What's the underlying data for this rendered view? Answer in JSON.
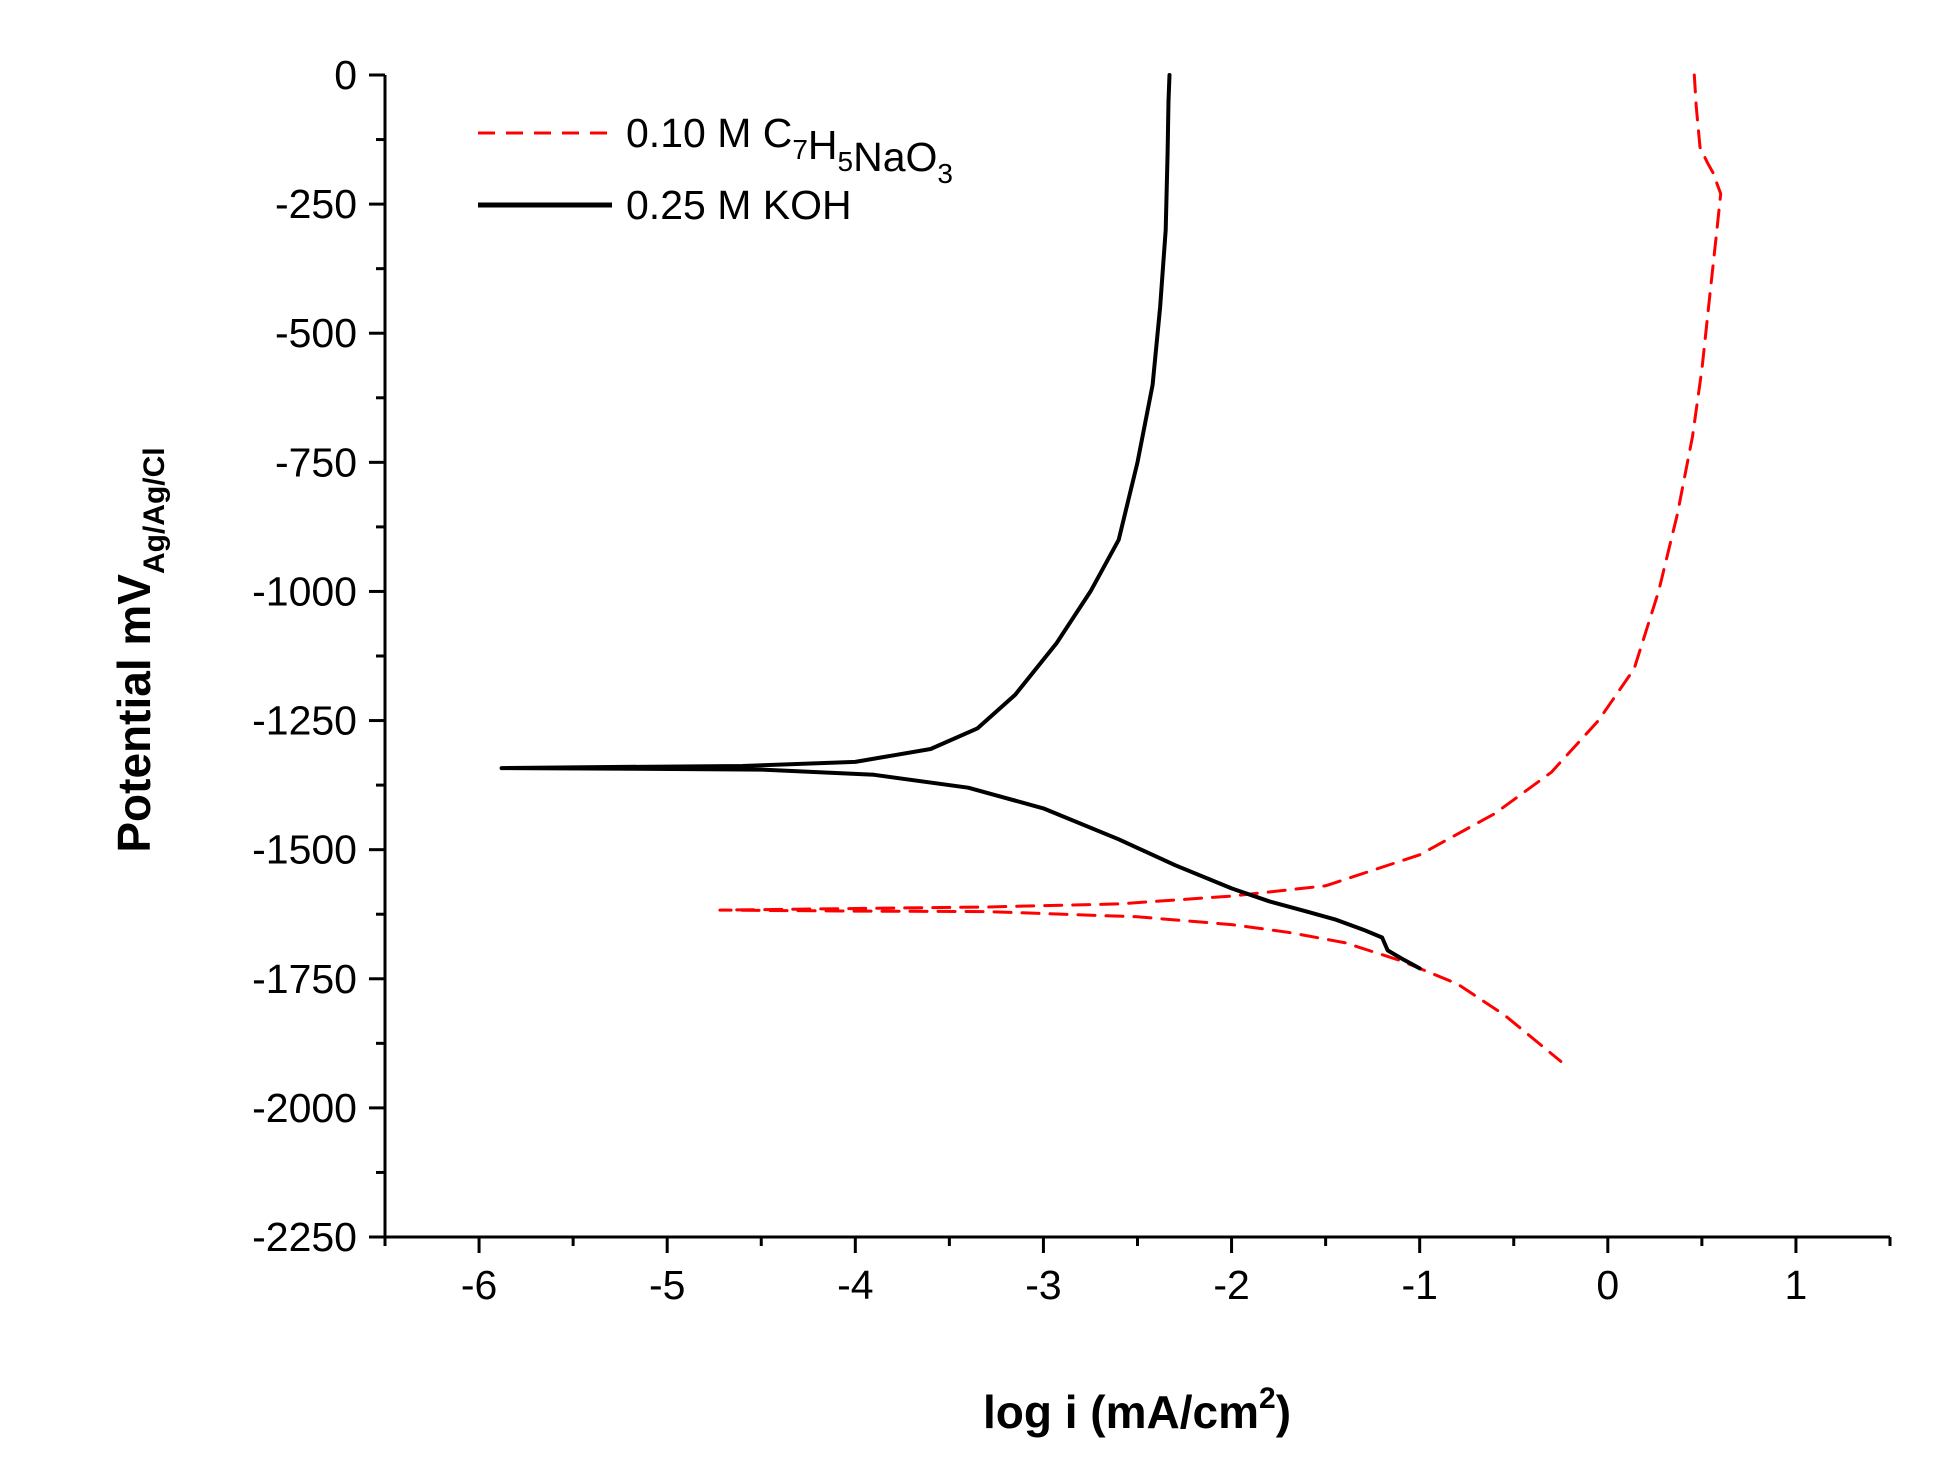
{
  "chart_data": {
    "type": "line",
    "title": "",
    "xlabel": "log i (mA/cm",
    "xlabel_sup": "2",
    "xlabel_close": ")",
    "ylabel": "Potential mV",
    "ylabel_sub": "Ag/Ag/Cl",
    "xlim": [
      -6.5,
      1.5
    ],
    "ylim": [
      -2250,
      0
    ],
    "x_ticks": [
      -6,
      -5,
      -4,
      -3,
      -2,
      -1,
      0,
      1
    ],
    "x_tick_labels": [
      "-6",
      "-5",
      "-4",
      "-3",
      "-2",
      "-1",
      "0",
      "1"
    ],
    "y_ticks": [
      0,
      -250,
      -500,
      -750,
      -1000,
      -1250,
      -1500,
      -1750,
      -2000,
      -2250
    ],
    "y_tick_labels": [
      "0",
      "-250",
      "-500",
      "-750",
      "-1000",
      "-1250",
      "-1500",
      "-1750",
      "-2000",
      "-2250"
    ],
    "grid": false,
    "legend_position": "top-left",
    "series": [
      {
        "name": "0.10 M C7H5NaO3",
        "label_parts": [
          {
            "t": "0.10 M C",
            "sub": false
          },
          {
            "t": "7",
            "sub": true
          },
          {
            "t": "H",
            "sub": false
          },
          {
            "t": "5",
            "sub": true
          },
          {
            "t": "NaO",
            "sub": false
          },
          {
            "t": "3",
            "sub": true
          }
        ],
        "color": "#ff0000",
        "dash": true,
        "x": [
          0.46,
          0.47,
          0.49,
          0.53,
          0.56,
          0.6,
          0.58,
          0.55,
          0.5,
          0.45,
          0.37,
          0.27,
          0.14,
          -0.05,
          -0.3,
          -0.6,
          -1.0,
          -1.5,
          -2.0,
          -2.6,
          -3.3,
          -4.0,
          -4.72,
          -4.0,
          -3.3,
          -2.5,
          -2.0,
          -1.7,
          -1.4,
          -1.1,
          -0.8,
          -0.55,
          -0.35,
          -0.25
        ],
        "y": [
          0,
          -60,
          -140,
          -170,
          -190,
          -230,
          -300,
          -400,
          -570,
          -700,
          -850,
          -1000,
          -1150,
          -1250,
          -1350,
          -1430,
          -1510,
          -1570,
          -1590,
          -1605,
          -1611,
          -1614,
          -1617,
          -1619,
          -1620,
          -1630,
          -1645,
          -1660,
          -1680,
          -1715,
          -1760,
          -1820,
          -1880,
          -1910
        ]
      },
      {
        "name": "0.25 M KOH",
        "label_parts": [
          {
            "t": "0.25 M KOH",
            "sub": false
          }
        ],
        "color": "#000000",
        "dash": false,
        "x": [
          -2.33,
          -2.335,
          -2.34,
          -2.35,
          -2.38,
          -2.42,
          -2.5,
          -2.6,
          -2.75,
          -2.93,
          -3.15,
          -3.35,
          -3.6,
          -4.0,
          -4.6,
          -5.3,
          -5.88,
          -5.3,
          -4.5,
          -3.9,
          -3.4,
          -3.0,
          -2.6,
          -2.3,
          -2.0,
          -1.8,
          -1.6,
          -1.45,
          -1.3,
          -1.2,
          -1.17,
          -1.1,
          -1.0
        ],
        "y": [
          0,
          -50,
          -150,
          -300,
          -450,
          -600,
          -750,
          -900,
          -1000,
          -1100,
          -1200,
          -1265,
          -1305,
          -1330,
          -1338,
          -1340,
          -1342,
          -1343,
          -1345,
          -1355,
          -1380,
          -1420,
          -1480,
          -1530,
          -1575,
          -1600,
          -1620,
          -1635,
          -1655,
          -1670,
          -1695,
          -1710,
          -1730
        ]
      }
    ]
  }
}
